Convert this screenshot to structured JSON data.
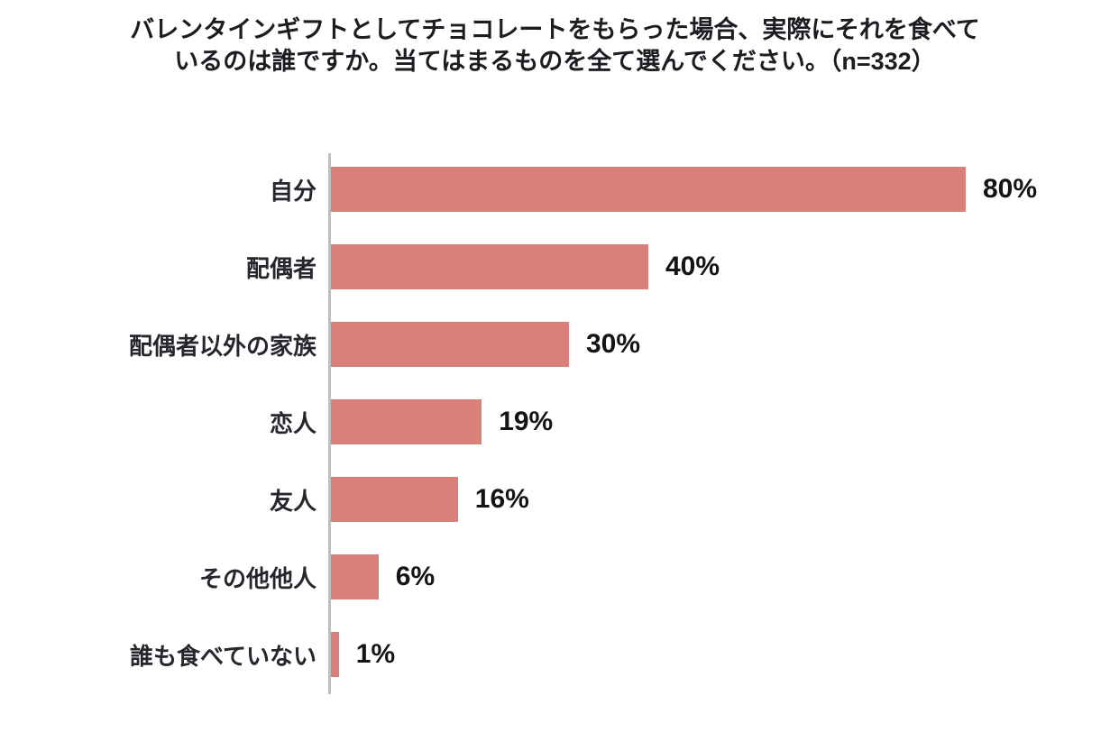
{
  "chart_data": {
    "type": "bar",
    "orientation": "horizontal",
    "title": "バレンタインギフトとしてチョコレートをもらった場合、実際にそれを食べているのは誰ですか。当てはまるものを全て選んでください。（n=332）",
    "categories": [
      "自分",
      "配偶者",
      "配偶者以外の家族",
      "恋人",
      "友人",
      "その他他人",
      "誰も食べていない"
    ],
    "values": [
      80,
      40,
      30,
      19,
      16,
      6,
      1
    ],
    "value_labels": [
      "80%",
      "40%",
      "30%",
      "19%",
      "16%",
      "6%",
      "1%"
    ],
    "xlabel": "",
    "ylabel": "",
    "xlim": [
      0,
      100
    ],
    "grid": false,
    "legend": "none",
    "bar_color": "#d9807b",
    "axis_color": "#bebebe",
    "text_color": "#1c1c22"
  }
}
